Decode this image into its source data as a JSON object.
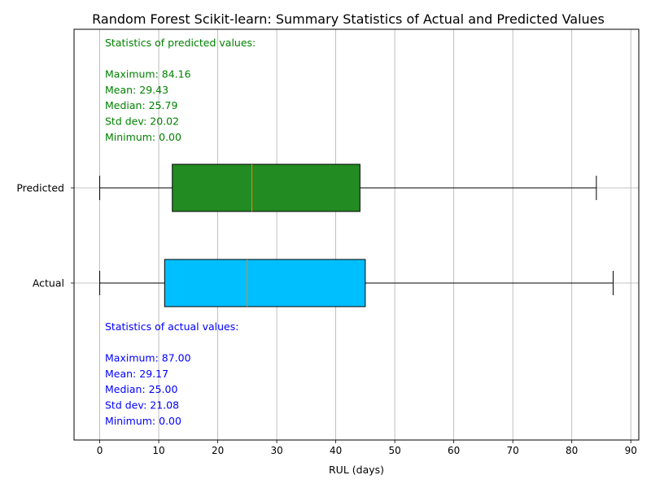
{
  "chart_data": {
    "type": "boxplot",
    "title": "Random Forest Scikit-learn: Summary Statistics of Actual and Predicted Values",
    "xlabel": "RUL (days)",
    "ylabel": "",
    "xlim": [
      -4.35,
      91.35
    ],
    "xticks": [
      0,
      10,
      20,
      30,
      40,
      50,
      60,
      70,
      80,
      90
    ],
    "grid": "vertical",
    "categories": [
      "Actual",
      "Predicted"
    ],
    "boxes": [
      {
        "name": "Actual",
        "whisker_low": 0,
        "q1": 11,
        "median": 25,
        "q3": 45,
        "whisker_high": 87,
        "color": "#00bfff"
      },
      {
        "name": "Predicted",
        "whisker_low": 0,
        "q1": 12.3,
        "median": 25.79,
        "q3": 44.1,
        "whisker_high": 84.16,
        "color": "#228b22"
      }
    ],
    "median_color": "#ff7f0e",
    "annotations": {
      "predicted": {
        "color": "#008000",
        "lines": [
          "Statistics of predicted values:",
          "",
          "Maximum: 84.16",
          "Mean: 29.43",
          "Median: 25.79",
          "Std dev: 20.02",
          "Minimum: 0.00"
        ]
      },
      "actual": {
        "color": "#0000ff",
        "lines": [
          "Statistics of actual values:",
          "",
          "Maximum: 87.00",
          "Mean: 29.17",
          "Median: 25.00",
          "Std dev: 21.08",
          "Minimum: 0.00"
        ]
      }
    }
  }
}
